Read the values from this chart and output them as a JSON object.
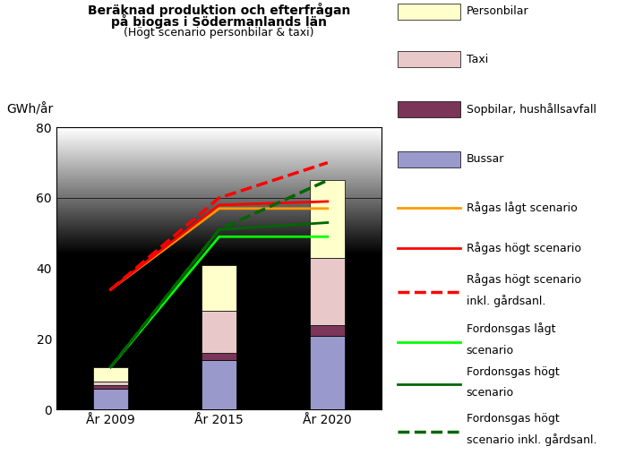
{
  "title_line1": "Beräknad produktion och efterfrågan",
  "title_line2": "på biogas i Södermanlands län",
  "subtitle": "(Högt scenario personbilar & taxi)",
  "ylabel": "GWh/år",
  "xtick_labels": [
    "År 2009",
    "År 2015",
    "År 2020"
  ],
  "ylim": [
    0,
    80
  ],
  "yticks": [
    0,
    20,
    40,
    60,
    80
  ],
  "bar_positions": [
    0,
    1,
    2
  ],
  "bar_width": 0.32,
  "bars": {
    "Bussar": [
      6,
      14,
      21
    ],
    "Sopbilar": [
      1,
      2,
      3
    ],
    "Taxi": [
      1,
      12,
      19
    ],
    "Personbilar": [
      4,
      13,
      22
    ]
  },
  "bar_colors": {
    "Bussar": "#9999cc",
    "Sopbilar": "#7b3558",
    "Taxi": "#e8c8c8",
    "Personbilar": "#ffffcc"
  },
  "bar_order": [
    "Bussar",
    "Sopbilar",
    "Taxi",
    "Personbilar"
  ],
  "lines": [
    {
      "key": "ragas_lagt",
      "label": "Rågas lågt scenario",
      "values": [
        34,
        57,
        57
      ],
      "color": "#ff9900",
      "ls": "-",
      "lw": 2.0
    },
    {
      "key": "ragas_hogt",
      "label": "Rågas högt scenario",
      "values": [
        34,
        58,
        59
      ],
      "color": "#ff0000",
      "ls": "-",
      "lw": 2.0
    },
    {
      "key": "ragas_hogt_inkl",
      "label": "Rågas högt scenario\ninkl. gårdsanl.",
      "values": [
        34,
        60,
        70
      ],
      "color": "#ff0000",
      "ls": "--",
      "lw": 2.5
    },
    {
      "key": "ford_lagt",
      "label": "Fordonsgas lågt\nscenario",
      "values": [
        12,
        49,
        49
      ],
      "color": "#00ff00",
      "ls": "-",
      "lw": 2.0
    },
    {
      "key": "ford_hogt",
      "label": "Fordonsgas högt\nscenario",
      "values": [
        12,
        51,
        53
      ],
      "color": "#006600",
      "ls": "-",
      "lw": 2.0
    },
    {
      "key": "ford_hogt_inkl",
      "label": "Fordonsgas högt\nscenario inkl. gårdsanl.",
      "values": [
        12,
        51,
        65
      ],
      "color": "#006600",
      "ls": "--",
      "lw": 2.5
    }
  ],
  "legend_bars": [
    {
      "label": "Personbilar",
      "color": "#ffffcc"
    },
    {
      "label": "Taxi",
      "color": "#e8c8c8"
    },
    {
      "label": "Sopbilar, hushållsavfall",
      "color": "#7b3558"
    },
    {
      "label": "Bussar",
      "color": "#9999cc"
    }
  ]
}
